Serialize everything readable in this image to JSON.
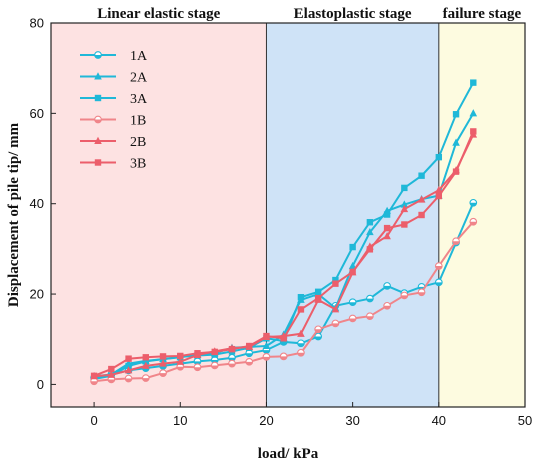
{
  "chart_data": {
    "type": "line",
    "title": "",
    "xlabel": "load/ kPa",
    "ylabel": "Displacement of pile tip/ mm",
    "xlim": [
      -5,
      50
    ],
    "ylim": [
      -5,
      80
    ],
    "xticks": [
      0,
      10,
      20,
      30,
      40,
      50
    ],
    "yticks": [
      0,
      20,
      40,
      60,
      80
    ],
    "grid": false,
    "legend_position": "top-left",
    "regions": [
      {
        "label": "Linear elastic stage",
        "x0": -5,
        "x1": 20,
        "color": "#fde2e2"
      },
      {
        "label": "Elastoplastic stage",
        "x0": 20,
        "x1": 40,
        "color": "#cfe3f7"
      },
      {
        "label": "failure stage",
        "x0": 40,
        "x1": 50,
        "color": "#fdfbe0"
      }
    ],
    "series": [
      {
        "name": "1A",
        "color": "#1fb8d8",
        "marker": "half-circle",
        "x": [
          0,
          2,
          4,
          6,
          8,
          10,
          12,
          14,
          16,
          18,
          20,
          22,
          24,
          26,
          28,
          30,
          32,
          34,
          36,
          38,
          40,
          42,
          44
        ],
        "y": [
          1.5,
          2.2,
          3.1,
          3.6,
          4.1,
          4.6,
          5.1,
          5.4,
          5.9,
          6.9,
          7.6,
          9.4,
          9.1,
          10.6,
          17.4,
          18.2,
          19.0,
          21.8,
          20.2,
          21.6,
          22.6,
          31.4,
          40.2
        ]
      },
      {
        "name": "2A",
        "color": "#1fb8d8",
        "marker": "triangle",
        "x": [
          0,
          2,
          4,
          6,
          8,
          10,
          12,
          14,
          16,
          18,
          20,
          22,
          24,
          26,
          28,
          30,
          32,
          34,
          36,
          38,
          40,
          42,
          44
        ],
        "y": [
          1.8,
          2.2,
          4.6,
          5.2,
          5.6,
          6.0,
          6.6,
          6.9,
          8.1,
          8.3,
          8.5,
          11.0,
          18.7,
          20.0,
          16.9,
          26.2,
          33.7,
          38.4,
          39.8,
          41.0,
          41.8,
          53.5,
          60.0
        ]
      },
      {
        "name": "3A",
        "color": "#1fb8d8",
        "marker": "square",
        "x": [
          0,
          2,
          4,
          6,
          8,
          10,
          12,
          14,
          16,
          18,
          20,
          22,
          24,
          26,
          28,
          30,
          32,
          34,
          36,
          38,
          40,
          42,
          44
        ],
        "y": [
          1.2,
          1.9,
          4.1,
          5.1,
          5.6,
          6.1,
          6.4,
          6.6,
          7.3,
          8.1,
          10.2,
          9.6,
          19.3,
          20.5,
          23.1,
          30.4,
          35.9,
          37.6,
          43.5,
          46.2,
          50.3,
          59.8,
          66.8
        ]
      },
      {
        "name": "1B",
        "color": "#f0858a",
        "marker": "half-circle",
        "x": [
          0,
          2,
          4,
          6,
          8,
          10,
          12,
          14,
          16,
          18,
          20,
          22,
          24,
          26,
          28,
          30,
          32,
          34,
          36,
          38,
          40,
          42,
          44
        ],
        "y": [
          0.7,
          1.1,
          1.3,
          1.4,
          2.5,
          3.9,
          3.8,
          4.2,
          4.6,
          5.0,
          6.1,
          6.2,
          7.0,
          12.2,
          13.5,
          14.6,
          15.1,
          17.4,
          19.7,
          20.4,
          26.2,
          31.7,
          36.0
        ]
      },
      {
        "name": "2B",
        "color": "#ec5e6b",
        "marker": "triangle",
        "x": [
          0,
          2,
          4,
          6,
          8,
          10,
          12,
          14,
          16,
          18,
          20,
          22,
          24,
          26,
          28,
          30,
          32,
          34,
          36,
          38,
          40,
          42,
          44
        ],
        "y": [
          1.8,
          2.1,
          3.1,
          4.1,
          4.6,
          5.0,
          6.5,
          7.3,
          8.0,
          8.3,
          10.5,
          10.7,
          11.2,
          18.7,
          16.6,
          24.8,
          30.5,
          32.8,
          38.8,
          40.9,
          43.0,
          47.4,
          55.3
        ]
      },
      {
        "name": "3B",
        "color": "#ec5e6b",
        "marker": "square",
        "x": [
          0,
          2,
          4,
          6,
          8,
          10,
          12,
          14,
          16,
          18,
          20,
          22,
          24,
          26,
          28,
          30,
          32,
          34,
          36,
          38,
          40,
          42,
          44
        ],
        "y": [
          1.9,
          3.4,
          5.7,
          6.0,
          6.2,
          6.3,
          6.9,
          7.2,
          7.8,
          8.5,
          10.7,
          10.2,
          16.6,
          19.1,
          22.3,
          24.9,
          29.9,
          34.6,
          35.4,
          37.5,
          41.7,
          47.1,
          56.0
        ]
      }
    ]
  }
}
